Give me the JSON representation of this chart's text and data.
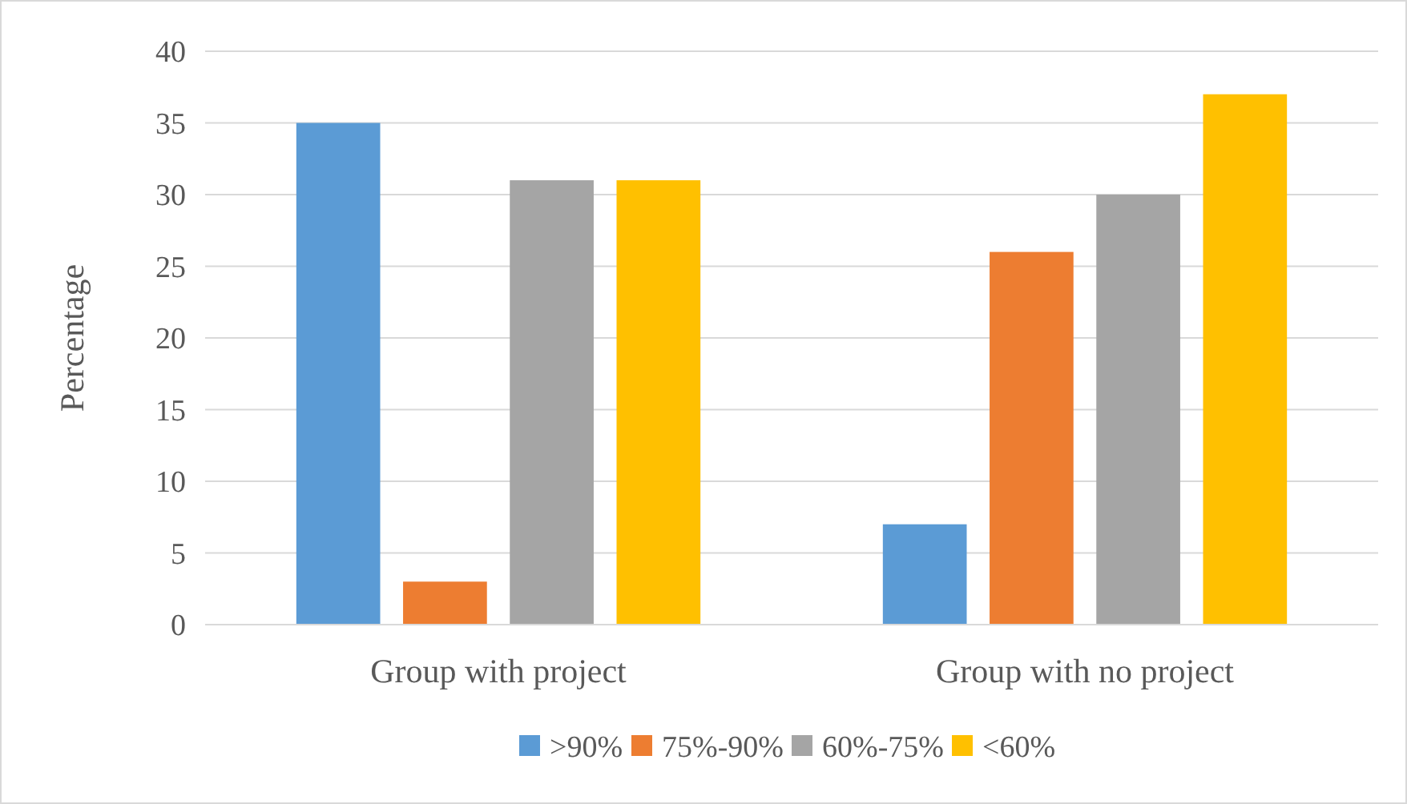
{
  "chart_data": {
    "type": "bar",
    "ylabel": "Percentage",
    "categories": [
      "Group with project",
      "Group with no project"
    ],
    "series": [
      {
        "name": ">90%",
        "color": "#5b9bd5",
        "values": [
          35,
          7
        ]
      },
      {
        "name": "75%-90%",
        "color": "#ed7d31",
        "values": [
          3,
          26
        ]
      },
      {
        "name": "60%-75%",
        "color": "#a5a5a5",
        "values": [
          31,
          30
        ]
      },
      {
        "name": "<60%",
        "color": "#ffc000",
        "values": [
          31,
          37
        ]
      }
    ],
    "ylim": [
      0,
      40
    ],
    "yticks": [
      0,
      5,
      10,
      15,
      20,
      25,
      30,
      35,
      40
    ],
    "grid": "y",
    "legend": "bottom"
  }
}
